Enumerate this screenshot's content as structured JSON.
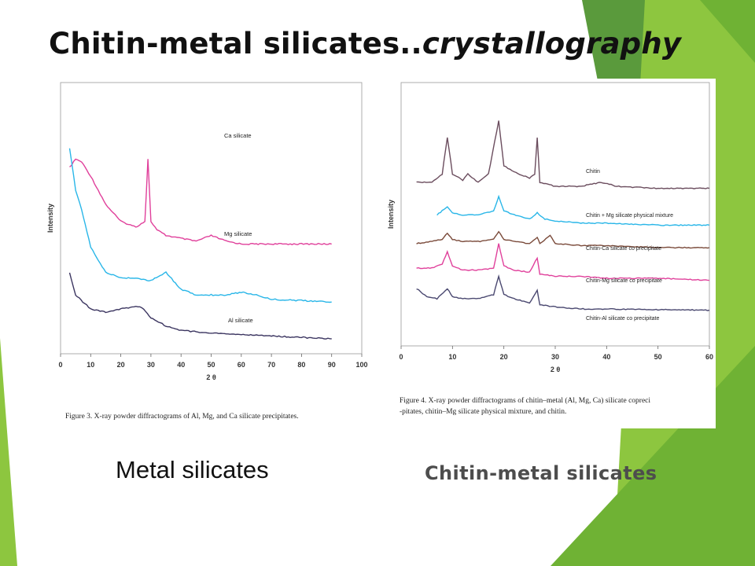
{
  "slide": {
    "title_main": "Chitin-metal silicates..",
    "title_italic": "crystallography",
    "caption_left": "Metal silicates",
    "caption_right": "Chitin-metal silicates"
  },
  "colors": {
    "accent_green": "#8dc63f",
    "dark_green": "#5a9a3c"
  },
  "chart_data": [
    {
      "type": "line",
      "figure_caption": "Figure 3.  X-ray powder diffractograms of Al, Mg, and Ca silicate precipitates.",
      "xlabel": "2 θ",
      "ylabel": "Intensity",
      "xlim": [
        0,
        100
      ],
      "xticks": [
        "0",
        "10",
        "20",
        "30",
        "40",
        "50",
        "60",
        "70",
        "80",
        "90",
        "100"
      ],
      "series": [
        {
          "name": "Ca silicate",
          "color": "#e0409b",
          "x": [
            3,
            5,
            7,
            10,
            15,
            20,
            25,
            28,
            29,
            30,
            32,
            35,
            40,
            45,
            50,
            55,
            60,
            70,
            80,
            90
          ],
          "y": [
            6.3,
            6.6,
            6.5,
            6.0,
            5.0,
            4.4,
            4.2,
            4.4,
            6.6,
            4.4,
            4.1,
            3.9,
            3.8,
            3.7,
            3.9,
            3.7,
            3.6,
            3.6,
            3.6,
            3.6
          ]
        },
        {
          "name": "Mg silicate",
          "color": "#29b6e8",
          "x": [
            3,
            5,
            7,
            10,
            12,
            15,
            20,
            25,
            30,
            35,
            40,
            45,
            50,
            55,
            60,
            65,
            70,
            80,
            90
          ],
          "y": [
            7.0,
            5.5,
            4.8,
            3.5,
            3.1,
            2.6,
            2.4,
            2.4,
            2.3,
            2.6,
            2.0,
            1.8,
            1.8,
            1.8,
            1.9,
            1.8,
            1.65,
            1.6,
            1.55
          ]
        },
        {
          "name": "Al silicate",
          "color": "#3b3560",
          "x": [
            3,
            5,
            8,
            10,
            15,
            20,
            25,
            27,
            30,
            35,
            40,
            45,
            50,
            60,
            70,
            80,
            90
          ],
          "y": [
            2.6,
            1.8,
            1.5,
            1.3,
            1.2,
            1.3,
            1.4,
            1.35,
            1.0,
            0.7,
            0.55,
            0.5,
            0.45,
            0.4,
            0.35,
            0.3,
            0.25
          ]
        }
      ]
    },
    {
      "type": "line",
      "figure_caption": "Figure 4.  X-ray powder diffractograms of chitin–metal (Al, Mg, Ca) silicate copreci-pitates, chitin–Mg silicate physical mixture, and chitin.",
      "xlabel": "2 θ",
      "ylabel": "Intensity",
      "xlim": [
        0,
        60
      ],
      "xticks": [
        "0",
        "10",
        "20",
        "30",
        "40",
        "50",
        "60"
      ],
      "series": [
        {
          "name": "Chitin",
          "color": "#6b4d5e",
          "x": [
            3,
            6,
            8,
            9,
            10,
            12,
            13,
            15,
            17,
            19,
            20,
            22,
            25,
            26,
            26.5,
            27,
            30,
            35,
            39,
            42,
            50,
            60
          ],
          "y": [
            4.1,
            4.1,
            4.3,
            5.2,
            4.3,
            4.15,
            4.3,
            4.1,
            4.3,
            5.6,
            4.5,
            4.35,
            4.2,
            4.3,
            5.2,
            4.1,
            4.0,
            4.0,
            4.1,
            4.0,
            3.95,
            3.95
          ]
        },
        {
          "name": "Chitin + Mg silicate physical mixture",
          "color": "#29b6e8",
          "x": [
            7,
            8,
            9,
            10,
            12,
            15,
            18,
            19,
            20,
            22,
            25,
            26.5,
            28,
            30,
            35,
            40,
            50,
            60
          ],
          "y": [
            3.3,
            3.4,
            3.5,
            3.35,
            3.3,
            3.3,
            3.4,
            3.75,
            3.4,
            3.3,
            3.2,
            3.35,
            3.2,
            3.15,
            3.1,
            3.1,
            3.05,
            3.05
          ]
        },
        {
          "name": "Chitin-Ca silicate co precipitate",
          "color": "#7a4a3a",
          "x": [
            3,
            6,
            8,
            9,
            10,
            12,
            15,
            18,
            19,
            20,
            22,
            25,
            26.5,
            27,
            29,
            30,
            35,
            40,
            50,
            60
          ],
          "y": [
            2.6,
            2.65,
            2.7,
            2.85,
            2.7,
            2.65,
            2.65,
            2.7,
            2.9,
            2.7,
            2.65,
            2.6,
            2.75,
            2.6,
            2.8,
            2.6,
            2.55,
            2.55,
            2.5,
            2.5
          ]
        },
        {
          "name": "Chitin-Mg silicate co precipitate",
          "color": "#e0409b",
          "x": [
            3,
            6,
            8,
            9,
            10,
            12,
            15,
            18,
            19,
            20,
            22,
            25,
            26.5,
            27,
            30,
            35,
            40,
            50,
            60
          ],
          "y": [
            2.0,
            2.0,
            2.1,
            2.4,
            2.05,
            1.95,
            1.95,
            2.0,
            2.6,
            2.05,
            1.95,
            1.9,
            2.25,
            1.85,
            1.8,
            1.8,
            1.75,
            1.75,
            1.7
          ]
        },
        {
          "name": "Chitin-Al silicate co precipitate",
          "color": "#4a4870",
          "x": [
            3,
            5,
            7,
            9,
            10,
            12,
            15,
            18,
            19,
            20,
            22,
            25,
            26.5,
            27,
            30,
            35,
            40,
            50,
            60
          ],
          "y": [
            1.5,
            1.3,
            1.25,
            1.5,
            1.3,
            1.25,
            1.25,
            1.35,
            1.8,
            1.35,
            1.25,
            1.15,
            1.45,
            1.1,
            1.05,
            1.0,
            1.0,
            0.98,
            0.97
          ]
        }
      ]
    }
  ]
}
